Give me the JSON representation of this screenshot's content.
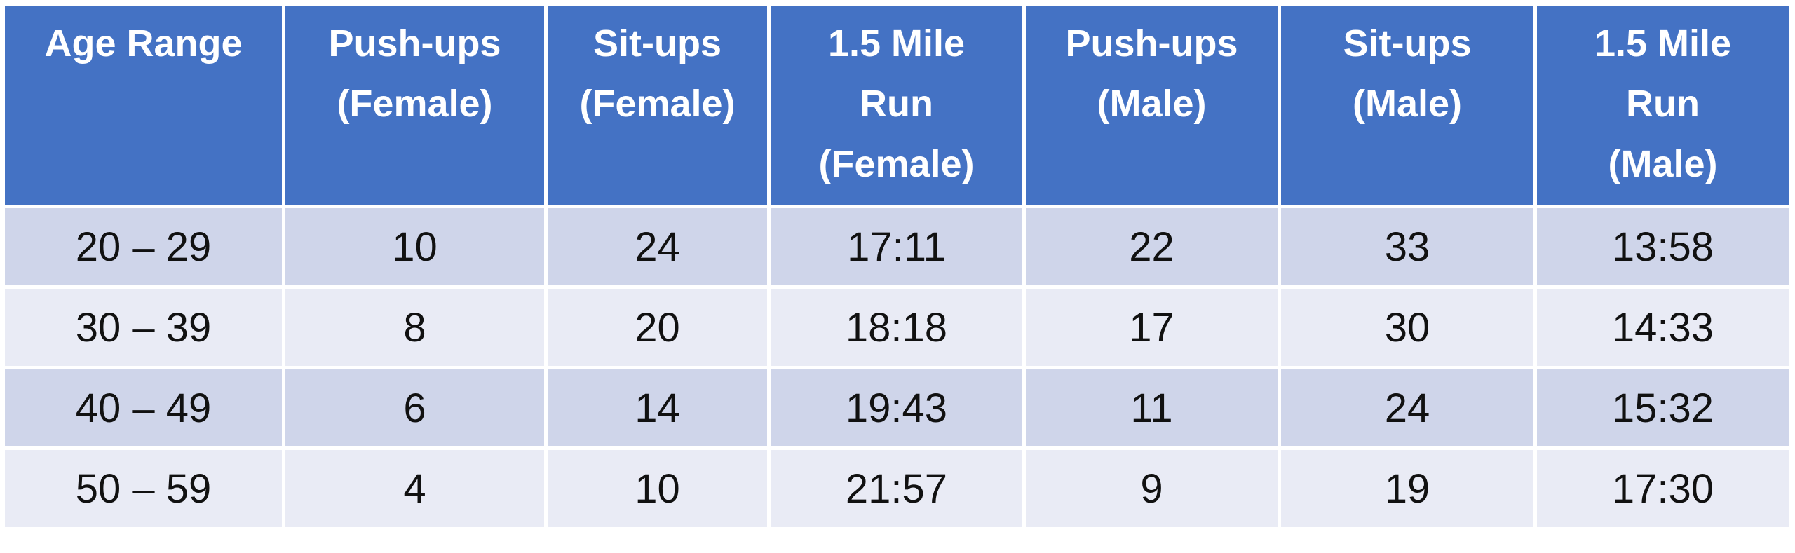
{
  "table": {
    "header": [
      [
        "Age Range"
      ],
      [
        "Push-ups",
        "(Female)"
      ],
      [
        "Sit-ups",
        "(Female)"
      ],
      [
        "1.5 Mile",
        "Run",
        "(Female)"
      ],
      [
        "Push-ups",
        "(Male)"
      ],
      [
        "Sit-ups",
        "(Male)"
      ],
      [
        "1.5 Mile",
        "Run",
        "(Male)"
      ]
    ],
    "rows": [
      [
        "20 – 29",
        10,
        24,
        "17:11",
        22,
        33,
        "13:58"
      ],
      [
        "30 – 39",
        8,
        20,
        "18:18",
        17,
        30,
        "14:33"
      ],
      [
        "40 – 49",
        6,
        14,
        "19:43",
        11,
        24,
        "15:32"
      ],
      [
        "50 – 59",
        4,
        10,
        "21:57",
        9,
        19,
        "17:30"
      ]
    ]
  }
}
